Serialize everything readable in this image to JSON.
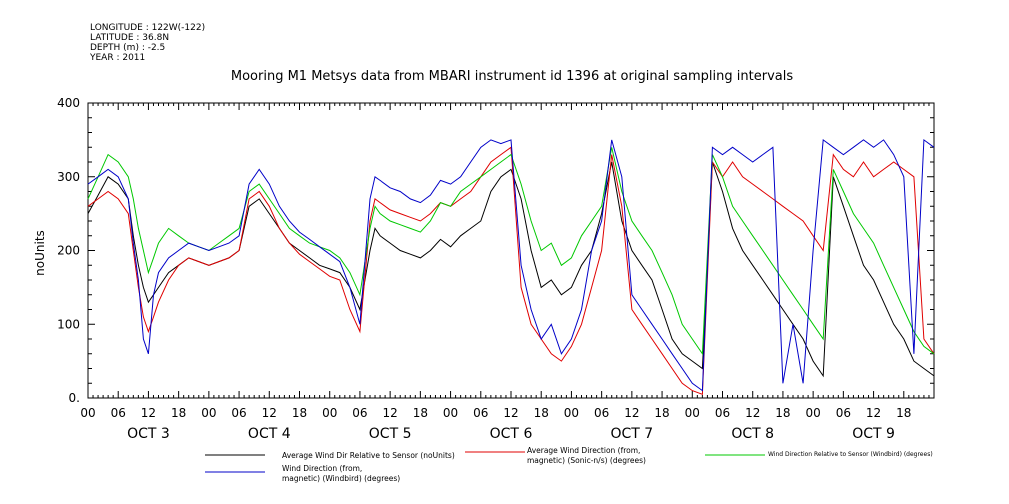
{
  "meta": {
    "longitude": "LONGITUDE : 122W(-122)",
    "latitude": "LATITUDE : 36.8N",
    "depth": "DEPTH (m) : -2.5",
    "year": "YEAR : 2011"
  },
  "chart_data": {
    "type": "line",
    "title": "Mooring M1 Metsys data from MBARI instrument id 1396 at original sampling intervals",
    "ylabel": "noUnits",
    "ylim": [
      0,
      400
    ],
    "y_ticks": [
      "0.",
      "100",
      "200",
      "300",
      "400"
    ],
    "x_range_hours": [
      0,
      168
    ],
    "x_ticks": [
      "00",
      "06",
      "12",
      "18",
      "00",
      "06",
      "12",
      "18",
      "00",
      "06",
      "12",
      "18",
      "00",
      "06",
      "12",
      "18",
      "00",
      "06",
      "12",
      "18",
      "00",
      "06",
      "12",
      "18",
      "00",
      "06",
      "12",
      "18"
    ],
    "day_labels": [
      "OCT 3",
      "OCT 4",
      "OCT 5",
      "OCT 6",
      "OCT 7",
      "OCT 8",
      "OCT 9"
    ],
    "series": [
      {
        "name": "Average Wind Dir Relative to Sensor (noUnits)",
        "color": "#000000",
        "x": [
          0,
          2,
          4,
          6,
          8,
          9,
          10,
          11,
          12,
          13,
          14,
          16,
          18,
          20,
          22,
          24,
          26,
          28,
          30,
          32,
          34,
          36,
          38,
          40,
          42,
          44,
          46,
          48,
          50,
          52,
          54,
          56,
          57,
          58,
          60,
          62,
          64,
          66,
          68,
          70,
          72,
          74,
          76,
          78,
          80,
          82,
          84,
          86,
          88,
          90,
          92,
          94,
          96,
          98,
          100,
          102,
          104,
          106,
          108,
          110,
          112,
          114,
          116,
          118,
          120,
          122,
          124,
          126,
          128,
          130,
          132,
          134,
          136,
          138,
          140,
          142,
          144,
          146,
          148,
          150,
          152,
          154,
          156,
          158,
          160,
          162,
          164,
          166,
          168
        ],
        "y": [
          250,
          275,
          300,
          290,
          270,
          220,
          180,
          150,
          130,
          140,
          150,
          170,
          180,
          190,
          185,
          180,
          185,
          190,
          200,
          260,
          270,
          250,
          230,
          210,
          200,
          190,
          180,
          175,
          170,
          150,
          120,
          200,
          230,
          220,
          210,
          200,
          195,
          190,
          200,
          215,
          205,
          220,
          230,
          240,
          280,
          300,
          310,
          270,
          200,
          150,
          160,
          140,
          150,
          180,
          200,
          250,
          320,
          240,
          200,
          180,
          160,
          120,
          80,
          60,
          50,
          40,
          320,
          280,
          230,
          200,
          180,
          160,
          140,
          120,
          100,
          80,
          50,
          30,
          300,
          260,
          220,
          180,
          160,
          130,
          100,
          80,
          50,
          40,
          30
        ]
      },
      {
        "name": "Average Wind Direction (from, magnetic) (Sonic-n/s) (degrees)",
        "color": "#e00000",
        "x": [
          0,
          2,
          4,
          6,
          8,
          9,
          10,
          11,
          12,
          13,
          14,
          16,
          18,
          20,
          22,
          24,
          26,
          28,
          30,
          32,
          34,
          36,
          38,
          40,
          42,
          44,
          46,
          48,
          50,
          52,
          54,
          56,
          57,
          58,
          60,
          62,
          64,
          66,
          68,
          70,
          72,
          74,
          76,
          78,
          80,
          82,
          84,
          86,
          88,
          90,
          92,
          94,
          96,
          98,
          100,
          102,
          104,
          106,
          108,
          110,
          112,
          114,
          116,
          118,
          120,
          122,
          124,
          126,
          128,
          130,
          132,
          134,
          136,
          138,
          140,
          142,
          144,
          146,
          148,
          150,
          152,
          154,
          156,
          158,
          160,
          162,
          164,
          166,
          168
        ],
        "y": [
          260,
          270,
          280,
          270,
          250,
          200,
          150,
          110,
          90,
          110,
          130,
          160,
          180,
          190,
          185,
          180,
          185,
          190,
          200,
          270,
          280,
          260,
          230,
          210,
          195,
          185,
          175,
          165,
          160,
          120,
          90,
          240,
          270,
          265,
          255,
          250,
          245,
          240,
          250,
          265,
          260,
          270,
          280,
          300,
          320,
          330,
          340,
          150,
          100,
          80,
          60,
          50,
          70,
          100,
          150,
          200,
          330,
          260,
          120,
          100,
          80,
          60,
          40,
          20,
          10,
          5,
          320,
          300,
          320,
          300,
          290,
          280,
          270,
          260,
          250,
          240,
          220,
          200,
          330,
          310,
          300,
          320,
          300,
          310,
          320,
          310,
          300,
          80,
          60
        ]
      },
      {
        "name": "Wind Direction Relative to Sensor (Windbird) (degrees)",
        "color": "#00c800",
        "x": [
          0,
          2,
          4,
          6,
          8,
          9,
          10,
          11,
          12,
          13,
          14,
          16,
          18,
          20,
          22,
          24,
          26,
          28,
          30,
          32,
          34,
          36,
          38,
          40,
          42,
          44,
          46,
          48,
          50,
          52,
          54,
          56,
          57,
          58,
          60,
          62,
          64,
          66,
          68,
          70,
          72,
          74,
          76,
          78,
          80,
          82,
          84,
          86,
          88,
          90,
          92,
          94,
          96,
          98,
          100,
          102,
          104,
          106,
          108,
          110,
          112,
          114,
          116,
          118,
          120,
          122,
          124,
          126,
          128,
          130,
          132,
          134,
          136,
          138,
          140,
          142,
          144,
          146,
          148,
          150,
          152,
          154,
          156,
          158,
          160,
          162,
          164,
          166,
          168
        ],
        "y": [
          270,
          300,
          330,
          320,
          300,
          270,
          230,
          200,
          170,
          190,
          210,
          230,
          220,
          210,
          205,
          200,
          210,
          220,
          230,
          280,
          290,
          270,
          250,
          230,
          220,
          210,
          205,
          200,
          190,
          170,
          140,
          230,
          260,
          250,
          240,
          235,
          230,
          225,
          240,
          265,
          260,
          280,
          290,
          300,
          310,
          320,
          330,
          290,
          240,
          200,
          210,
          180,
          190,
          220,
          240,
          260,
          340,
          280,
          240,
          220,
          200,
          170,
          140,
          100,
          80,
          60,
          330,
          300,
          260,
          240,
          220,
          200,
          180,
          160,
          140,
          120,
          100,
          80,
          310,
          280,
          250,
          230,
          210,
          180,
          150,
          120,
          90,
          70,
          60
        ]
      },
      {
        "name": "Wind Direction (from, magnetic) (Windbird) (degrees)",
        "color": "#0000c8",
        "x": [
          0,
          2,
          4,
          6,
          8,
          9,
          10,
          11,
          12,
          13,
          14,
          16,
          18,
          20,
          22,
          24,
          26,
          28,
          30,
          32,
          34,
          36,
          38,
          40,
          42,
          44,
          46,
          48,
          50,
          52,
          54,
          56,
          57,
          58,
          60,
          62,
          64,
          66,
          68,
          70,
          72,
          74,
          76,
          78,
          80,
          82,
          84,
          86,
          88,
          90,
          92,
          94,
          96,
          98,
          100,
          102,
          104,
          106,
          108,
          110,
          112,
          114,
          116,
          118,
          120,
          122,
          124,
          126,
          128,
          130,
          132,
          134,
          136,
          138,
          140,
          142,
          144,
          146,
          148,
          150,
          152,
          154,
          156,
          158,
          160,
          162,
          164,
          166,
          168
        ],
        "y": [
          290,
          300,
          310,
          300,
          270,
          210,
          160,
          80,
          60,
          140,
          170,
          190,
          200,
          210,
          205,
          200,
          205,
          210,
          220,
          290,
          310,
          290,
          260,
          240,
          225,
          215,
          205,
          195,
          185,
          150,
          100,
          270,
          300,
          295,
          285,
          280,
          270,
          265,
          275,
          295,
          290,
          300,
          320,
          340,
          350,
          345,
          350,
          180,
          120,
          80,
          100,
          60,
          80,
          120,
          200,
          240,
          350,
          300,
          140,
          120,
          100,
          80,
          60,
          40,
          20,
          10,
          340,
          330,
          340,
          330,
          320,
          330,
          340,
          20,
          100,
          20,
          200,
          350,
          340,
          330,
          340,
          350,
          340,
          350,
          330,
          300,
          60,
          350,
          340
        ]
      }
    ]
  }
}
